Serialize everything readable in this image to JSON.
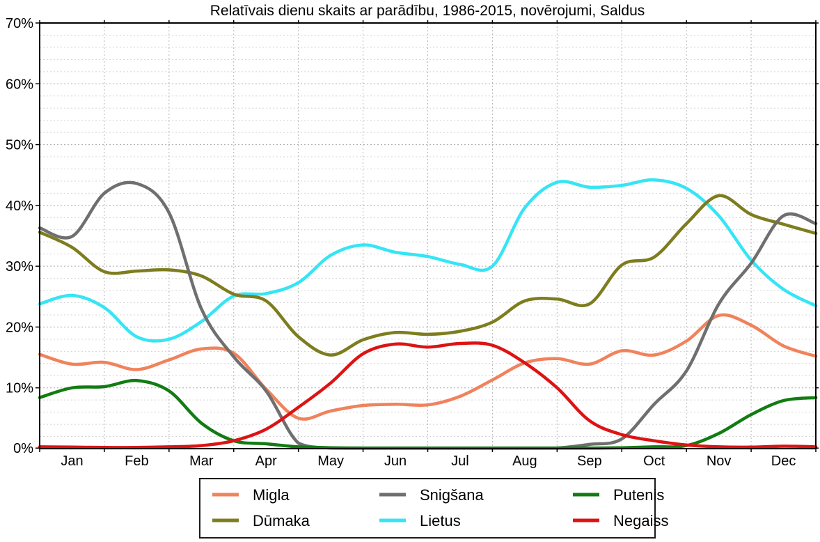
{
  "title": "Relatīvais dienu skaits ar parādību, 1986-2015, novērojumi, Saldus",
  "y_axis_tick_labels": [
    "0%",
    "10%",
    "20%",
    "30%",
    "40%",
    "50%",
    "60%",
    "70%"
  ],
  "x_axis_tick_labels": [
    "Jan",
    "Feb",
    "Mar",
    "Apr",
    "May",
    "Jun",
    "Jul",
    "Aug",
    "Sep",
    "Oct",
    "Nov",
    "Dec"
  ],
  "chart_data": {
    "type": "line",
    "title": "Relatīvais dienu skaits ar parādību, 1986-2015, novērojumi, Saldus",
    "xlabel": "",
    "ylabel": "",
    "ylim": [
      0,
      70
    ],
    "y_unit": "%",
    "y_tick_major_step": 10,
    "y_tick_minor_step": 2,
    "grid": "on",
    "x_unit": "month of year; data points at day 1 and day 16 of each month (0 = Jan 1, 12 = Dec 31)",
    "x": [
      0,
      0.5,
      1,
      1.5,
      2,
      2.5,
      3,
      3.5,
      4,
      4.5,
      5,
      5.5,
      6,
      6.5,
      7,
      7.5,
      8,
      8.5,
      9,
      9.5,
      10,
      10.5,
      11,
      11.5,
      12
    ],
    "series": [
      {
        "name": "Migla",
        "color": "#f0825c",
        "values": [
          15.5,
          13.9,
          14.2,
          13.0,
          14.6,
          16.4,
          15.7,
          9.8,
          5.0,
          6.2,
          7.1,
          7.3,
          7.2,
          8.6,
          11.3,
          14.1,
          14.8,
          13.9,
          16.1,
          15.4,
          17.7,
          21.9,
          20.3,
          16.9,
          15.2
        ]
      },
      {
        "name": "Dūmaka",
        "color": "#7d7d1f",
        "values": [
          35.6,
          33.1,
          29.1,
          29.2,
          29.4,
          28.4,
          25.4,
          24.3,
          18.4,
          15.4,
          17.9,
          19.1,
          18.8,
          19.3,
          20.8,
          24.3,
          24.6,
          23.8,
          30.2,
          31.5,
          37.0,
          41.6,
          38.5,
          36.9,
          35.4
        ]
      },
      {
        "name": "Snigšana",
        "color": "#6f6f6f",
        "values": [
          36.3,
          34.9,
          42.0,
          43.6,
          38.8,
          23.0,
          15.1,
          9.5,
          0.9,
          0.1,
          0.05,
          0.05,
          0.05,
          0.05,
          0.05,
          0.05,
          0.1,
          0.7,
          1.6,
          7.3,
          12.8,
          23.8,
          30.5,
          38.3,
          37.0
        ]
      },
      {
        "name": "Lietus",
        "color": "#35e5f5",
        "values": [
          23.8,
          25.2,
          23.2,
          18.4,
          18.0,
          20.9,
          25.1,
          25.5,
          27.3,
          31.8,
          33.5,
          32.3,
          31.6,
          30.3,
          30.0,
          39.6,
          43.8,
          43.0,
          43.3,
          44.2,
          42.8,
          38.3,
          31.0,
          26.2,
          23.5
        ]
      },
      {
        "name": "Putenis",
        "color": "#127c12",
        "values": [
          8.4,
          10.0,
          10.2,
          11.2,
          9.5,
          4.2,
          1.3,
          0.8,
          0.3,
          0.15,
          0.1,
          0.1,
          0.1,
          0.1,
          0.1,
          0.1,
          0.1,
          0.1,
          0.15,
          0.3,
          0.5,
          2.5,
          5.6,
          7.9,
          8.4
        ]
      },
      {
        "name": "Negaiss",
        "color": "#dd1313",
        "values": [
          0.3,
          0.25,
          0.2,
          0.2,
          0.3,
          0.5,
          1.3,
          3.2,
          6.8,
          10.8,
          15.6,
          17.2,
          16.7,
          17.3,
          17.0,
          14.1,
          10.0,
          4.6,
          2.3,
          1.3,
          0.6,
          0.3,
          0.25,
          0.4,
          0.3
        ]
      }
    ],
    "draw_order": [
      "Migla",
      "Lietus",
      "Dūmaka",
      "Snigšana",
      "Putenis",
      "Negaiss"
    ],
    "legend_position": "bottom",
    "legend_columns": [
      [
        "Migla",
        "Dūmaka"
      ],
      [
        "Snigšana",
        "Lietus"
      ],
      [
        "Putenis",
        "Negaiss"
      ]
    ]
  },
  "style": {
    "axis_color": "#000000",
    "grid_minor_color": "#d4d4d4",
    "grid_major_color": "#a8a8a8",
    "grid_month_color": "#b5b5b5",
    "background": "#ffffff",
    "line_width": 4.5
  }
}
